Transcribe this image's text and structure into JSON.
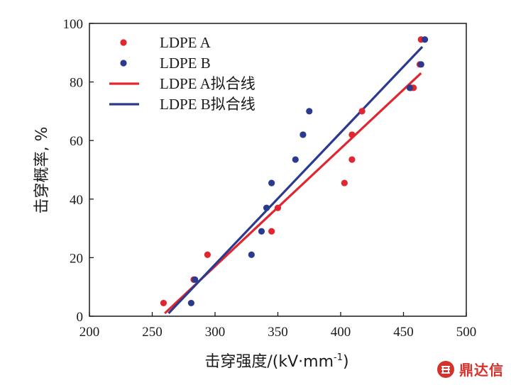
{
  "chart_data": {
    "type": "scatter",
    "xlabel": "击穿强度/(kV·mm",
    "xlabel_sup": "-1",
    "xlabel_end": ")",
    "ylabel": "击穿概率, %",
    "xlim": [
      200,
      500
    ],
    "ylim": [
      0,
      100
    ],
    "xticks": [
      200,
      250,
      300,
      350,
      400,
      450,
      500
    ],
    "yticks": [
      0,
      20,
      40,
      60,
      80,
      100
    ],
    "grid": false,
    "legend_position": "top-left",
    "series": [
      {
        "name": "LDPE A",
        "kind": "points",
        "color": "#e0262f",
        "points": [
          [
            259,
            4.5
          ],
          [
            283,
            12.5
          ],
          [
            294,
            21
          ],
          [
            345,
            29
          ],
          [
            350,
            37
          ],
          [
            403,
            45.5
          ],
          [
            409,
            53.5
          ],
          [
            409,
            62
          ],
          [
            417,
            70
          ],
          [
            456,
            78
          ],
          [
            458,
            78
          ],
          [
            463,
            86
          ],
          [
            464,
            94.5
          ]
        ]
      },
      {
        "name": "LDPE B",
        "kind": "points",
        "color": "#2b3a8f",
        "points": [
          [
            281,
            4.5
          ],
          [
            284,
            12.5
          ],
          [
            329,
            21
          ],
          [
            337,
            29
          ],
          [
            341,
            37
          ],
          [
            345,
            45.5
          ],
          [
            364,
            53.5
          ],
          [
            370,
            62
          ],
          [
            375,
            70
          ],
          [
            455,
            78
          ],
          [
            464,
            86
          ],
          [
            467,
            94.5
          ]
        ]
      },
      {
        "name": "LDPE A拟合线",
        "kind": "line",
        "color": "#e0262f",
        "points": [
          [
            260,
            1
          ],
          [
            464,
            83
          ]
        ]
      },
      {
        "name": "LDPE B拟合线",
        "kind": "line",
        "color": "#2b3a8f",
        "points": [
          [
            263,
            1
          ],
          [
            465,
            92
          ]
        ]
      }
    ]
  },
  "watermark": {
    "text": "鼎达信",
    "logo_icon": "ddx-logo-icon",
    "color": "#d6322b"
  }
}
